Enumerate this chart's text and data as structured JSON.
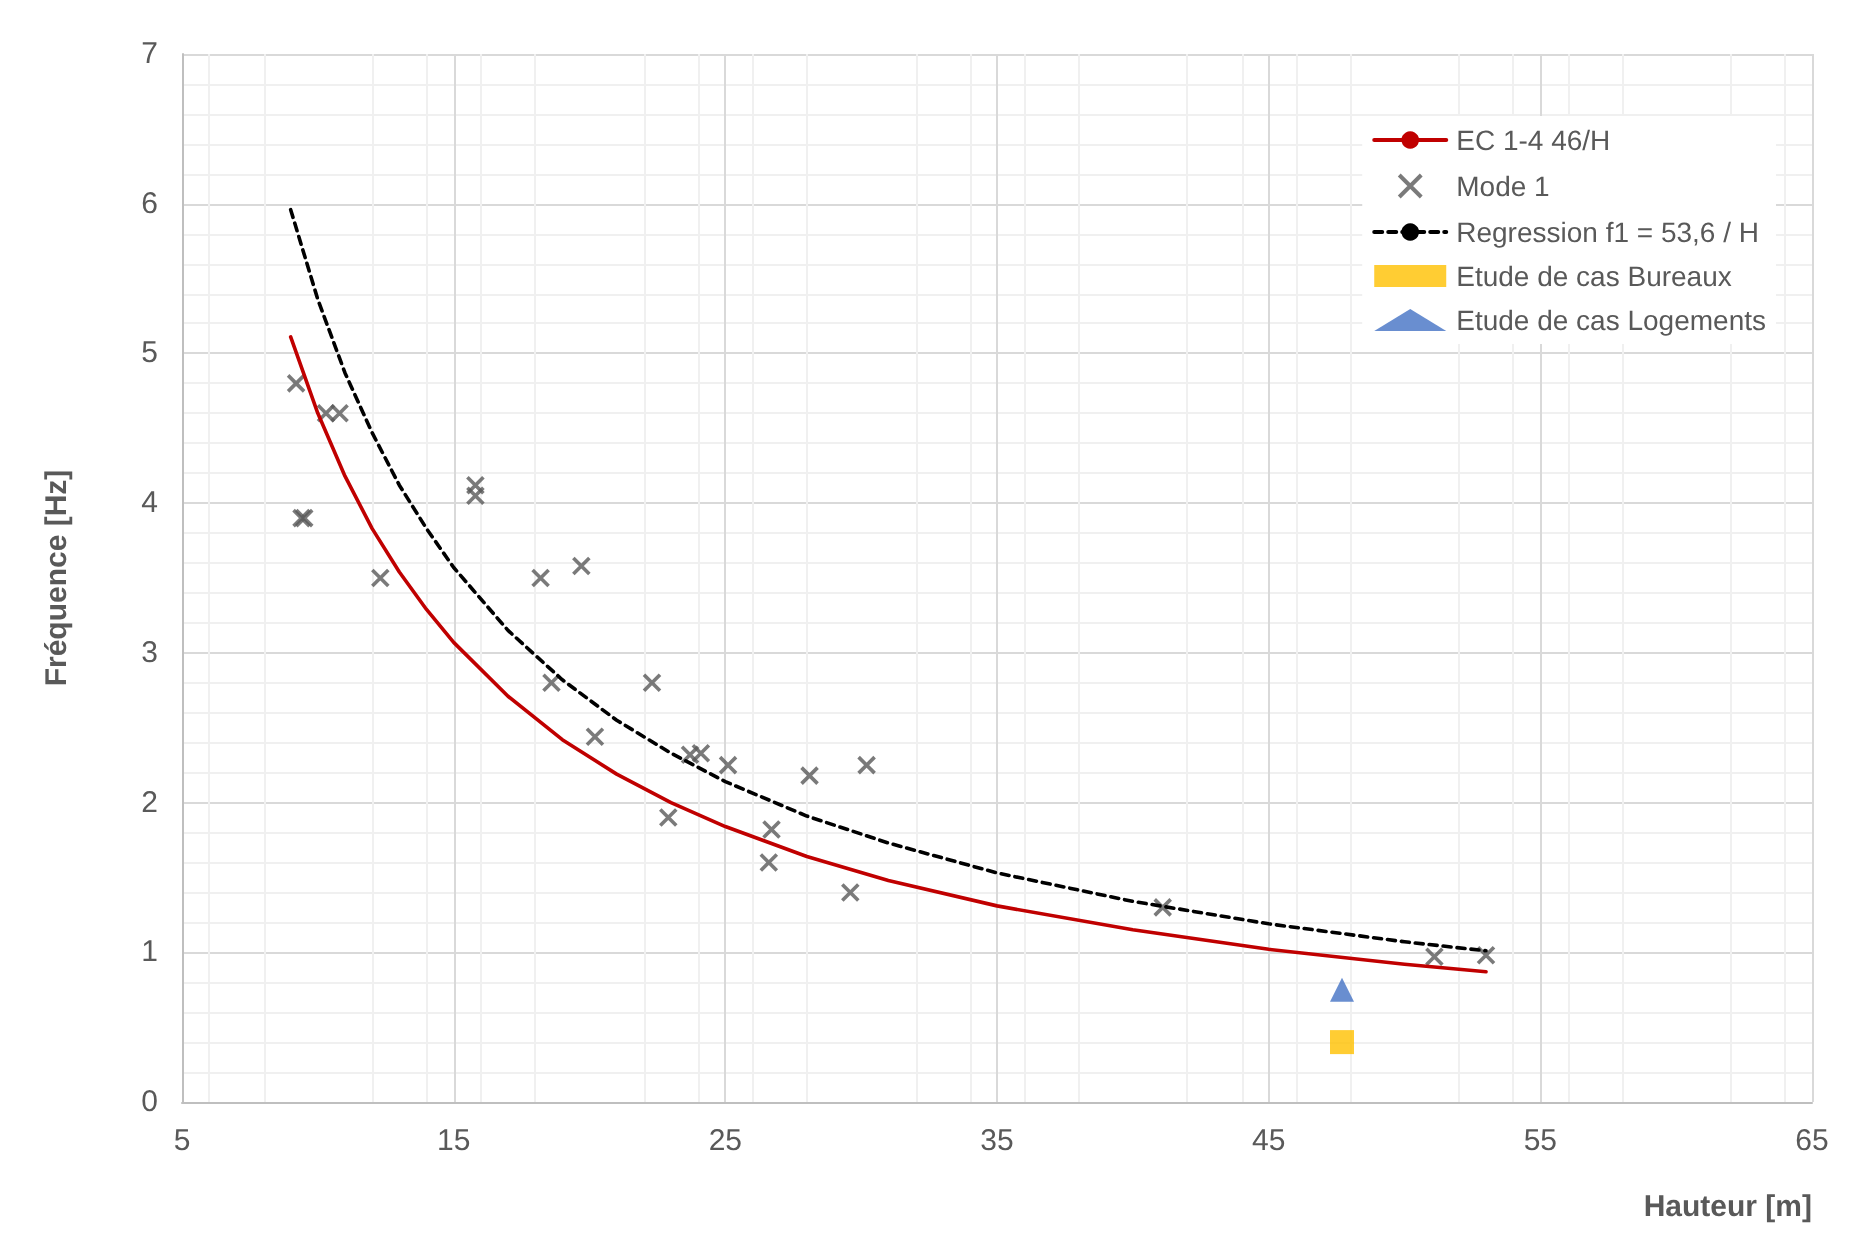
{
  "chart_data": {
    "type": "scatter",
    "xlabel": "Hauteur [m]",
    "ylabel": "Fréquence [Hz]",
    "xlim": [
      5,
      65
    ],
    "xticks": [
      5,
      15,
      25,
      35,
      45,
      55,
      65
    ],
    "ylim": [
      0,
      7
    ],
    "yticks": [
      0,
      1,
      2,
      3,
      4,
      5,
      6,
      7
    ],
    "grid": true,
    "legend": "top right",
    "series": [
      {
        "name": "EC 1-4 46/H",
        "type": "line",
        "color": "#c00000",
        "marker": "none",
        "line_style": "solid",
        "x": [
          9,
          10,
          11,
          12,
          13,
          14,
          15,
          17,
          19,
          21,
          23,
          25,
          28,
          31,
          35,
          40,
          45,
          50,
          53
        ],
        "values": [
          5.11,
          4.6,
          4.18,
          3.83,
          3.54,
          3.29,
          3.07,
          2.71,
          2.42,
          2.19,
          2.0,
          1.84,
          1.64,
          1.48,
          1.31,
          1.15,
          1.02,
          0.92,
          0.87
        ]
      },
      {
        "name": "Mode 1",
        "color": "#595959",
        "marker": "cross",
        "x": [
          9.2,
          9.4,
          9.5,
          10.3,
          10.8,
          12.3,
          15.8,
          15.8,
          18.2,
          19.7,
          18.6,
          20.2,
          22.3,
          22.9,
          23.7,
          24.1,
          25.1,
          26.7,
          26.6,
          28.1,
          30.2,
          29.6,
          41.1,
          51.1,
          53.0
        ],
        "values": [
          4.8,
          3.9,
          3.9,
          4.6,
          4.6,
          3.5,
          4.12,
          4.05,
          3.5,
          3.58,
          2.8,
          2.44,
          2.8,
          1.9,
          2.32,
          2.33,
          2.25,
          1.82,
          1.6,
          2.18,
          2.25,
          1.4,
          1.3,
          0.97,
          0.98
        ]
      },
      {
        "name": "Regression f1 = 53,6 / H",
        "type": "line",
        "color": "#000000",
        "marker": "none",
        "line_style": "dashed",
        "x": [
          9,
          10,
          11,
          12,
          13,
          14,
          15,
          17,
          19,
          21,
          23,
          25,
          28,
          31,
          35,
          40,
          45,
          50,
          53
        ],
        "values": [
          5.96,
          5.36,
          4.87,
          4.47,
          4.12,
          3.83,
          3.57,
          3.15,
          2.82,
          2.55,
          2.33,
          2.14,
          1.91,
          1.73,
          1.53,
          1.34,
          1.19,
          1.07,
          1.01
        ]
      },
      {
        "name": "Etude de cas Bureaux",
        "type": "scatter",
        "color": "#ffc000",
        "marker": "square",
        "x": [
          47.7
        ],
        "values": [
          0.4
        ]
      },
      {
        "name": "Etude de cas Logements",
        "type": "scatter",
        "color": "#4472c4",
        "marker": "triangle",
        "x": [
          47.7
        ],
        "values": [
          0.75
        ]
      }
    ]
  }
}
